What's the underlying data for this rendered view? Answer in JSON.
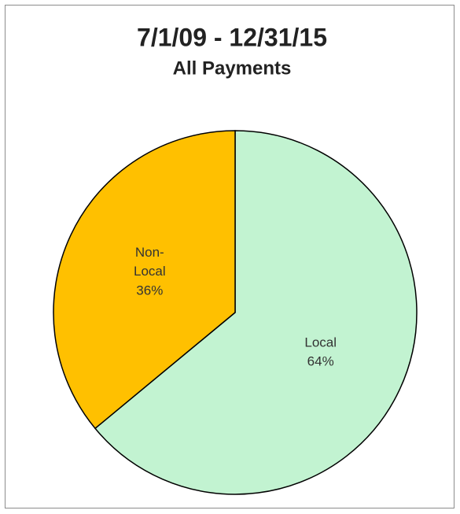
{
  "chart_data": {
    "type": "pie",
    "title": "7/1/09 - 12/31/15",
    "subtitle": "All Payments",
    "categories": [
      "Local",
      "Non-Local"
    ],
    "values": [
      64,
      36
    ],
    "value_labels": [
      "64%",
      "36%"
    ],
    "colors": [
      "#c2f3d1",
      "#ffc000"
    ]
  }
}
